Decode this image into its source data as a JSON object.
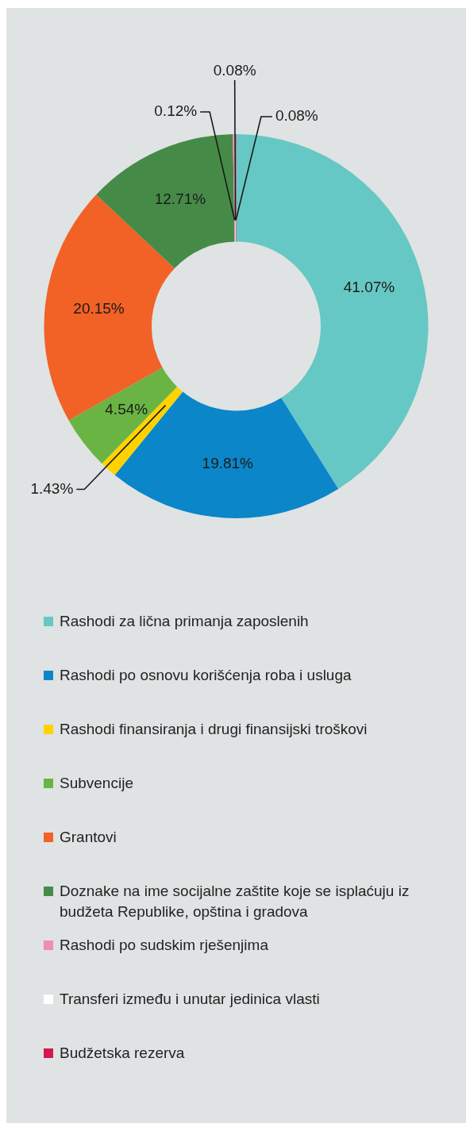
{
  "chart_data": {
    "type": "donut",
    "categories": [
      "Rashodi za lična primanja zaposlenih",
      "Rashodi po osnovu korišćenja roba i usluga",
      "Rashodi finansiranja i drugi finansijski troškovi",
      "Subvencije",
      "Grantovi",
      "Doznake na ime socijalne zaštite koje se isplaćuju iz budžeta Republike, opština i gradova",
      "Rashodi po sudskim rješenjima",
      "Transferi između i unutar jedinica vlasti",
      "Budžetska rezerva"
    ],
    "values": [
      41.07,
      19.81,
      1.43,
      4.54,
      20.15,
      12.71,
      0.12,
      0.08,
      0.08
    ],
    "value_labels": [
      "41.07%",
      "19.81%",
      "1.43%",
      "4.54%",
      "20.15%",
      "12.71%",
      "0.12%",
      "0.08%",
      "0.08%"
    ],
    "colors": [
      "#66c8c4",
      "#0a86c9",
      "#ffd200",
      "#6ab444",
      "#f26126",
      "#458b47",
      "#f08cb8",
      "#ffffff",
      "#d5174f"
    ],
    "legend": "bottom"
  }
}
